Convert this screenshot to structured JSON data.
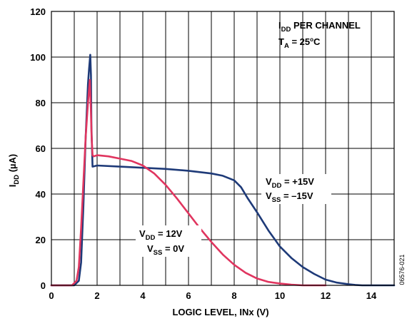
{
  "chart_data": {
    "type": "line",
    "xlabel": "LOGIC LEVEL, INx (V)",
    "ylabel": {
      "main": "I",
      "sub": "DD",
      "rest": " (µA)"
    },
    "xlim": [
      0,
      15
    ],
    "ylim": [
      0,
      120
    ],
    "xticks": [
      0,
      2,
      4,
      6,
      8,
      10,
      12,
      14
    ],
    "yticks": [
      0,
      20,
      40,
      60,
      80,
      100,
      120
    ],
    "grid": true,
    "title_annotation": {
      "line1": {
        "main": "I",
        "sub": "DD",
        "rest": " PER CHANNEL"
      },
      "line2": {
        "main": "T",
        "sub": "A",
        "rest": " = 25",
        "sup": "o",
        "tail": "C"
      }
    },
    "figure_id": "06576-021",
    "series": [
      {
        "color": "#1e3a78",
        "labels": [
          {
            "main": "V",
            "sub": "DD",
            "rest": " = +15V"
          },
          {
            "main": "V",
            "sub": "SS",
            "rest": " = –15V"
          }
        ],
        "x": [
          0,
          1.0,
          1.2,
          1.3,
          1.4,
          1.5,
          1.6,
          1.65,
          1.7,
          1.73,
          1.75,
          1.8,
          2.0,
          3.0,
          4.0,
          5.0,
          6.0,
          7.0,
          7.5,
          8.0,
          8.3,
          8.6,
          9.0,
          9.5,
          10.0,
          10.5,
          11.0,
          11.5,
          12.0,
          12.5,
          13.0,
          13.3,
          13.6,
          14.0,
          15.0
        ],
        "y": [
          0,
          0,
          2,
          10,
          35,
          65,
          88,
          95,
          101,
          92,
          70,
          52,
          52.5,
          52,
          51.5,
          51,
          50.2,
          49,
          48,
          46,
          43,
          38,
          32,
          24,
          17,
          12,
          8,
          5,
          2.5,
          1.2,
          0.5,
          0.2,
          0,
          0,
          0
        ]
      },
      {
        "color": "#e0355f",
        "labels": [
          {
            "main": "V",
            "sub": "DD",
            "rest": " = 12V"
          },
          {
            "main": "V",
            "sub": "SS",
            "rest": " = 0V"
          }
        ],
        "x": [
          0,
          0.9,
          1.1,
          1.2,
          1.3,
          1.4,
          1.5,
          1.6,
          1.68,
          1.72,
          1.76,
          1.8,
          1.85,
          2.0,
          2.5,
          3.0,
          3.5,
          4.0,
          4.5,
          5.0,
          5.5,
          6.0,
          6.5,
          7.0,
          7.5,
          8.0,
          8.5,
          9.0,
          9.5,
          10.0,
          10.5,
          11.0,
          12.0
        ],
        "y": [
          0,
          0,
          2,
          8,
          25,
          45,
          65,
          80,
          90,
          80,
          65,
          57,
          56.5,
          57,
          56.5,
          55.5,
          54.5,
          52.5,
          49,
          44,
          38,
          31.5,
          25,
          19,
          13.5,
          9,
          5.5,
          3,
          1.5,
          0.8,
          0.3,
          0,
          0
        ]
      }
    ]
  }
}
